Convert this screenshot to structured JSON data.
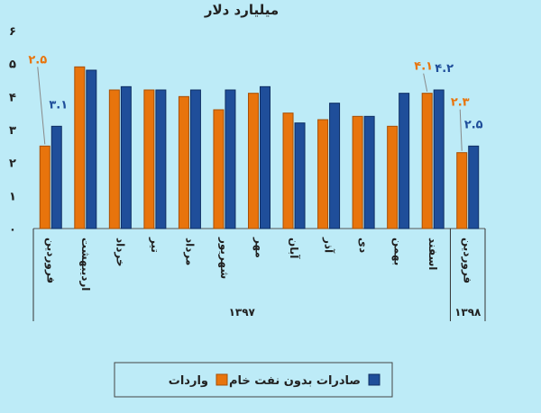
{
  "chart_data": {
    "type": "bar",
    "title": "میلیارد دلار",
    "ylim": [
      0,
      6
    ],
    "yticks": [
      "۰",
      "۱",
      "۲",
      "۳",
      "۴",
      "۵",
      "۶"
    ],
    "categories": [
      "فروردین",
      "اردیبهشت",
      "خرداد",
      "تیر",
      "مرداد",
      "شهریور",
      "مهر",
      "آبان",
      "آذر",
      "دی",
      "بهمن",
      "اسفند",
      "فروردین"
    ],
    "groups": [
      {
        "label": "۱۳۹۷",
        "span": 12
      },
      {
        "label": "۱۳۹۸",
        "span": 1
      }
    ],
    "series": [
      {
        "name": "واردات",
        "color": "#E8740C",
        "values": [
          2.5,
          4.9,
          4.2,
          4.2,
          4.0,
          3.6,
          4.1,
          3.5,
          3.3,
          3.4,
          3.1,
          4.1,
          2.3
        ]
      },
      {
        "name": "صادرات بدون نفت خام",
        "color": "#1F4E9A",
        "values": [
          3.1,
          4.8,
          4.3,
          4.2,
          4.2,
          4.2,
          4.3,
          3.2,
          3.8,
          3.4,
          4.1,
          4.2,
          2.5
        ]
      }
    ],
    "data_labels": [
      {
        "series": 0,
        "index": 0,
        "text": "۲.۵"
      },
      {
        "series": 1,
        "index": 0,
        "text": "۳.۱"
      },
      {
        "series": 0,
        "index": 11,
        "text": "۴.۱"
      },
      {
        "series": 1,
        "index": 11,
        "text": "۴.۲"
      },
      {
        "series": 0,
        "index": 12,
        "text": "۲.۳"
      },
      {
        "series": 1,
        "index": 12,
        "text": "۲.۵"
      }
    ],
    "grid": false,
    "legend_position": "bottom",
    "background": "#BDEBF7"
  }
}
